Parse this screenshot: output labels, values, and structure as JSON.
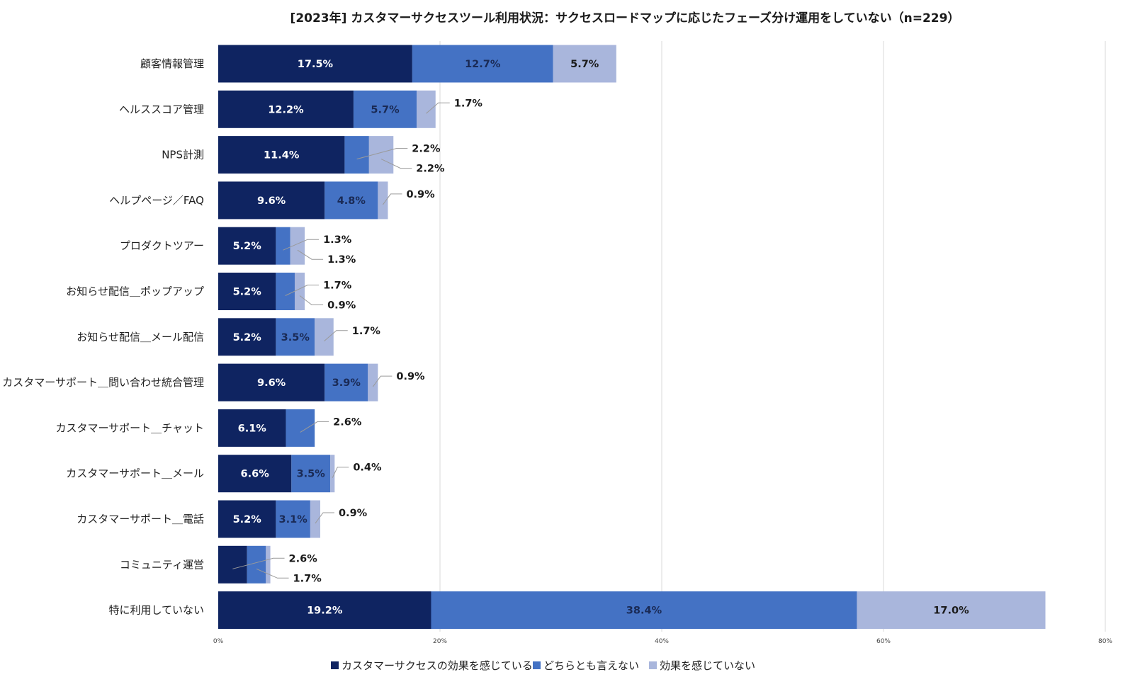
{
  "chart_data": {
    "type": "bar",
    "orientation": "horizontal",
    "stacked": true,
    "title": "[2023年] カスタマーサクセスツール利用状況：サクセスロードマップに応じたフェーズ分け運用をしていない（n=229）",
    "xlabel": "",
    "ylabel": "",
    "xlim": [
      0,
      80
    ],
    "ticks": [
      0,
      20,
      40,
      60,
      80
    ],
    "tick_labels": [
      "0%",
      "20%",
      "40%",
      "60%",
      "80%"
    ],
    "grid": true,
    "legend_position": "bottom",
    "categories": [
      "顧客情報管理",
      "ヘルススコア管理",
      "NPS計測",
      "ヘルプページ／FAQ",
      "プロダクトツアー",
      "お知らせ配信＿ポップアップ",
      "お知らせ配信＿メール配信",
      "カスタマーサポート＿問い合わせ統合管理",
      "カスタマーサポート＿チャット",
      "カスタマーサポート＿メール",
      "カスタマーサポート＿電話",
      "コミュニティ運営",
      "特に利用していない"
    ],
    "series": [
      {
        "name": "カスタマーサクセスの効果を感じている",
        "color": "#0f2461",
        "label_color": "#ffffff",
        "values": [
          17.5,
          12.2,
          11.4,
          9.6,
          5.2,
          5.2,
          5.2,
          9.6,
          6.1,
          6.6,
          5.2,
          2.6,
          19.2
        ],
        "labels": [
          "17.5%",
          "12.2%",
          "11.4%",
          "9.6%",
          "5.2%",
          "5.2%",
          "5.2%",
          "9.6%",
          "6.1%",
          "6.6%",
          "5.2%",
          "2.6%",
          "19.2%"
        ]
      },
      {
        "name": "どちらとも言えない",
        "color": "#4472c4",
        "label_color": "#1a2a55",
        "values": [
          12.7,
          5.7,
          2.2,
          4.8,
          1.3,
          1.7,
          3.5,
          3.9,
          2.6,
          3.5,
          3.1,
          1.7,
          38.4
        ],
        "labels": [
          "12.7%",
          "5.7%",
          "2.2%",
          "4.8%",
          "1.3%",
          "1.7%",
          "3.5%",
          "3.9%",
          "2.6%",
          "3.5%",
          "3.1%",
          "1.7%",
          "38.4%"
        ]
      },
      {
        "name": "効果を感じていない",
        "color": "#a9b6dc",
        "label_color": "#1a1a1a",
        "values": [
          5.7,
          1.7,
          2.2,
          0.9,
          1.3,
          0.9,
          1.7,
          0.9,
          0.0,
          0.4,
          0.9,
          0.4,
          17.0
        ],
        "labels": [
          "5.7%",
          "1.7%",
          "2.2%",
          "0.9%",
          "1.3%",
          "0.9%",
          "1.7%",
          "0.9%",
          "",
          "0.4%",
          "0.9%",
          "",
          "17.0%"
        ]
      }
    ]
  }
}
